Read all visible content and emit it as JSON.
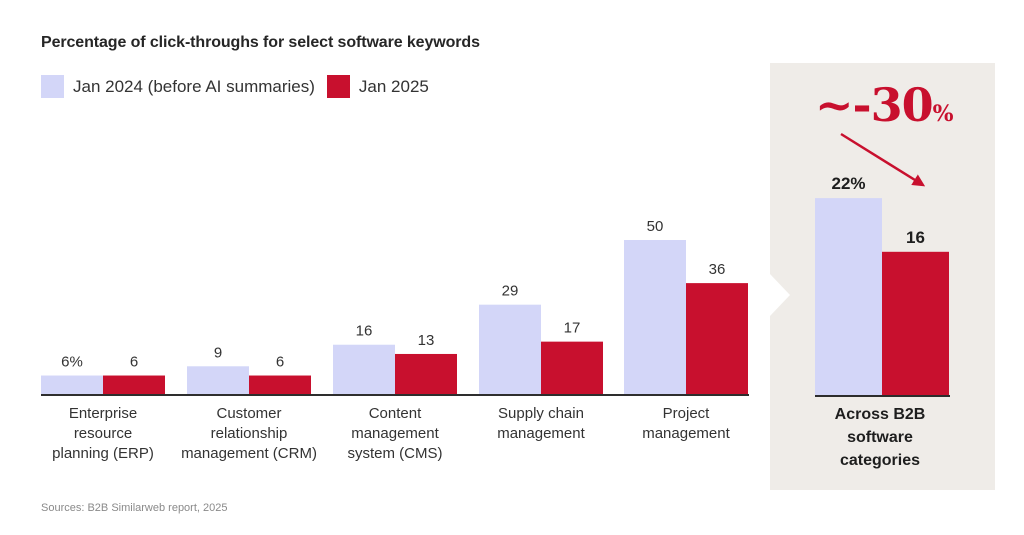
{
  "chart_data": {
    "type": "bar",
    "title": "Percentage of click-throughs for select software keywords",
    "xlabel": "",
    "ylabel": "",
    "ylim": [
      0,
      50
    ],
    "grid": false,
    "legend_position": "top-left",
    "categories": [
      "Enterprise resource planning (ERP)",
      "Customer relationship management (CRM)",
      "Content management system (CMS)",
      "Supply chain management",
      "Project management"
    ],
    "category_lines": [
      [
        "Enterprise",
        "resource",
        "planning (ERP)"
      ],
      [
        "Customer",
        "relationship",
        "management (CRM)"
      ],
      [
        "Content",
        "management",
        "system (CMS)"
      ],
      [
        "Supply chain",
        "management"
      ],
      [
        "Project",
        "management"
      ]
    ],
    "series": [
      {
        "name": "Jan 2024 (before AI summaries)",
        "color": "#d3d6f8",
        "values": [
          6,
          9,
          16,
          29,
          50
        ],
        "labels": [
          "6%",
          "9",
          "16",
          "29",
          "50"
        ]
      },
      {
        "name": "Jan 2025",
        "color": "#c8102e",
        "values": [
          6,
          6,
          13,
          17,
          36
        ],
        "labels": [
          "6",
          "6",
          "13",
          "17",
          "36"
        ]
      }
    ],
    "summary": {
      "category_lines": [
        "Across B2B",
        "software",
        "categories"
      ],
      "values": [
        22,
        16
      ],
      "labels": [
        "22%",
        "16"
      ],
      "change_label": "~-30",
      "change_suffix": "%",
      "background": "#efece8"
    },
    "source": "Sources: B2B Similarweb report, 2025"
  }
}
